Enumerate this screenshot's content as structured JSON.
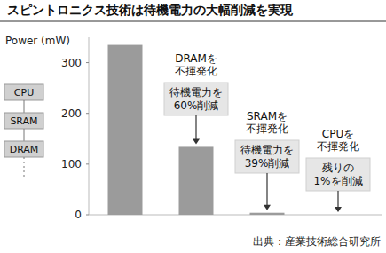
{
  "chart_data": {
    "type": "bar",
    "title": "スピントロニクス技術は待機電力の大幅削減を実現",
    "y_label": "Power (mW)",
    "categories": [
      null,
      null,
      null,
      null
    ],
    "values": [
      335,
      134,
      4,
      0
    ],
    "color": "#9b9b9b",
    "ylim": [
      0,
      350
    ],
    "yticks": [
      0,
      100,
      200,
      300
    ],
    "grid": false,
    "annotations": [
      {
        "heading": "DRAMを\n不揮発化",
        "note": "待機電力を\n60%削減"
      },
      {
        "heading": "SRAMを\n不揮発化",
        "note": "待機電力を\n39%削減"
      },
      {
        "heading": "CPUを\n不揮発化",
        "note": "残りの\n1%を削減"
      }
    ],
    "source": "出典：産業技術総合研究所"
  },
  "memory_stack": [
    "CPU",
    "SRAM",
    "DRAM"
  ]
}
